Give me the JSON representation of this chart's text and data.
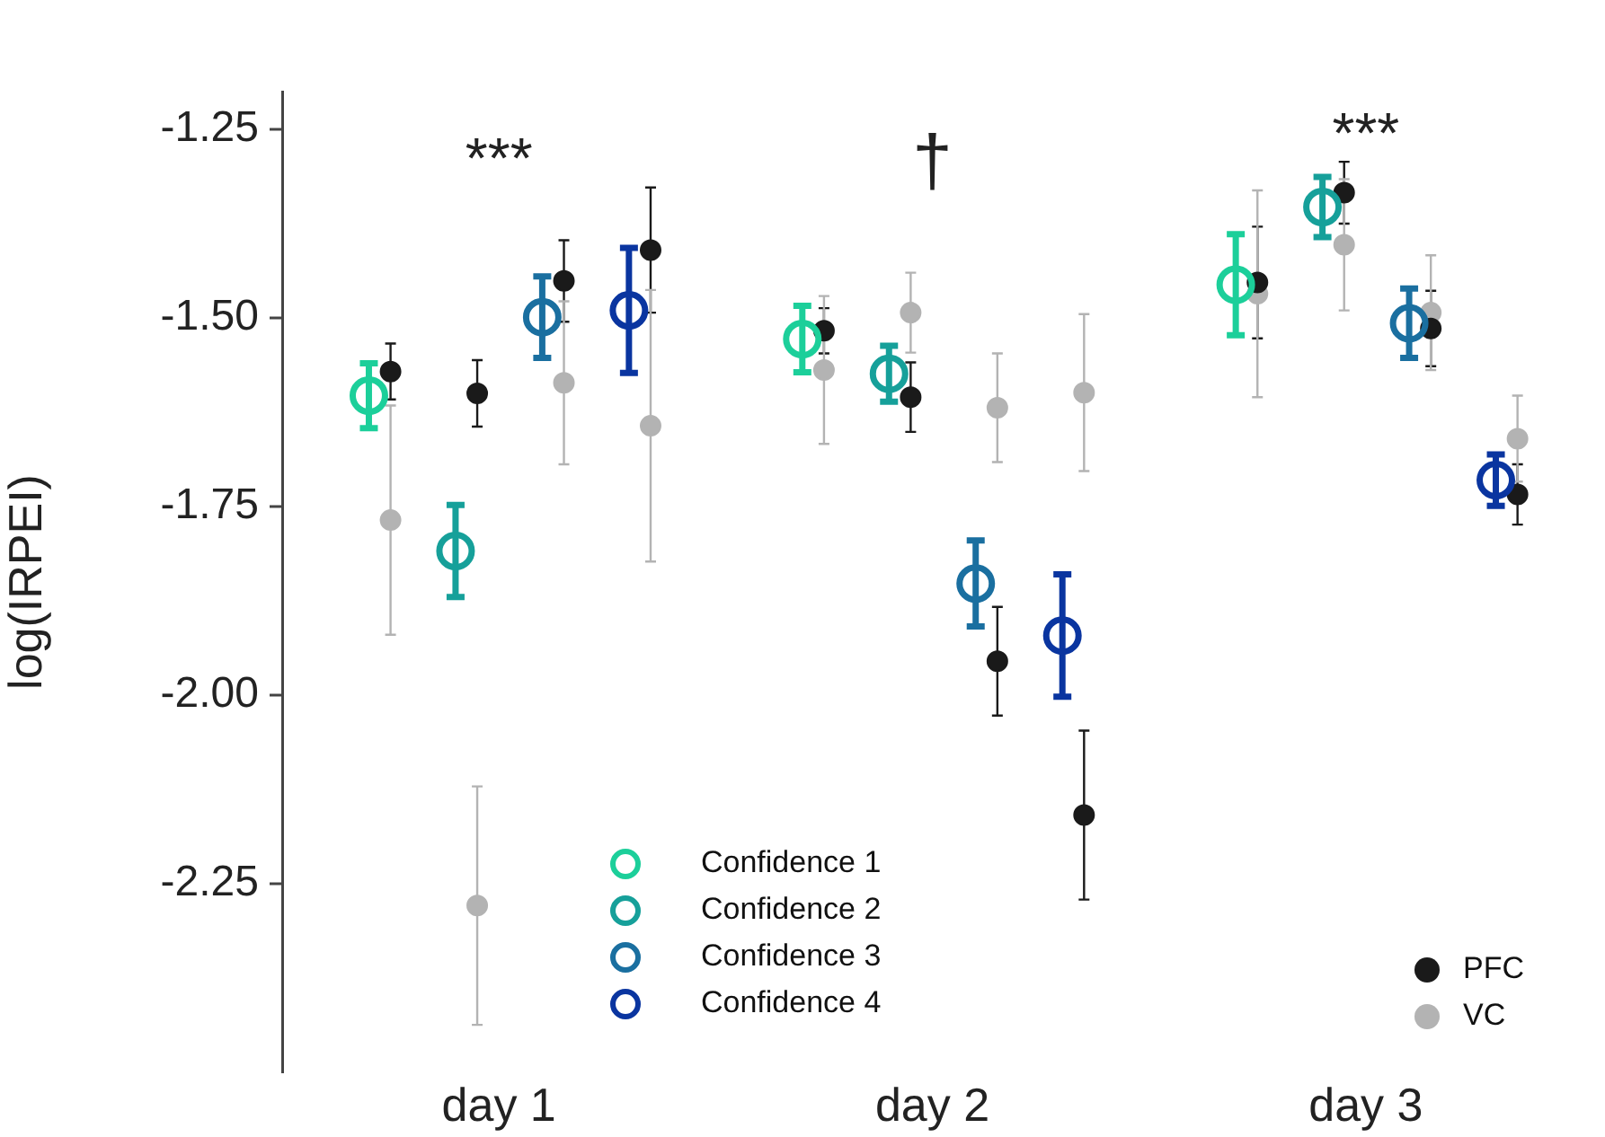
{
  "chart_data": {
    "type": "scatter",
    "ylabel": "log(IRPEI)",
    "categories": [
      "day 1",
      "day 2",
      "day 3"
    ],
    "ylim": [
      -2.5,
      -1.2
    ],
    "yticks": [
      -1.25,
      {
        "value": -1.5,
        "label": "-1.50"
      },
      -1.75,
      {
        "value": -2.0,
        "label": "-2.00"
      },
      -2.25
    ],
    "grid": false,
    "legend": "bottom",
    "marker": "circle",
    "annotations": [
      "***",
      "†",
      "***"
    ],
    "series": [
      {
        "name": "Confidence 1",
        "color": "#1ccf9a",
        "values": [
          -1.603,
          -1.528,
          -1.456
        ],
        "errors": [
          0.043,
          0.044,
          0.067
        ]
      },
      {
        "name": "Confidence 2",
        "color": "#16a09a",
        "values": [
          -1.809,
          -1.574,
          -1.353
        ],
        "errors": [
          0.061,
          0.037,
          0.04
        ]
      },
      {
        "name": "Confidence 3",
        "color": "#1a6fa0",
        "values": [
          -1.499,
          -1.852,
          -1.507
        ],
        "errors": [
          0.054,
          0.057,
          0.046
        ]
      },
      {
        "name": "Confidence 4",
        "color": "#0a35a0",
        "values": [
          -1.49,
          -1.921,
          -1.715
        ],
        "errors": [
          0.083,
          0.081,
          0.034
        ]
      },
      {
        "name": "PFC",
        "color": "#1a1a1a",
        "values": [
          -1.571,
          -1.517,
          -1.453
        ],
        "errors": [
          0.037,
          0.03,
          0.074
        ]
      },
      {
        "color": "#1a1a1a",
        "values": [
          -1.6,
          -1.605,
          -1.334
        ],
        "errors": [
          0.044,
          0.046,
          0.041
        ]
      },
      {
        "color": "#1a1a1a",
        "values": [
          -1.451,
          -1.955,
          -1.514
        ],
        "errors": [
          0.054,
          0.072,
          0.05
        ]
      },
      {
        "color": "#1a1a1a",
        "values": [
          -1.41,
          -2.159,
          -1.734
        ],
        "errors": [
          0.083,
          0.112,
          0.04
        ]
      },
      {
        "name": "VC",
        "color": "#b3b3b3",
        "values": [
          -1.768,
          -1.569,
          -1.468
        ],
        "errors": [
          0.152,
          0.098,
          0.137
        ]
      },
      {
        "color": "#b3b3b3",
        "values": [
          -2.279,
          -1.493,
          -1.403
        ],
        "errors": [
          0.158,
          0.053,
          0.087
        ]
      },
      {
        "color": "#b3b3b3",
        "values": [
          -1.586,
          -1.619,
          -1.493
        ],
        "errors": [
          0.108,
          0.072,
          0.076
        ]
      },
      {
        "color": "#b3b3b3",
        "values": [
          -1.643,
          -1.599,
          -1.66
        ],
        "errors": [
          0.18,
          0.104,
          0.057
        ]
      }
    ]
  }
}
